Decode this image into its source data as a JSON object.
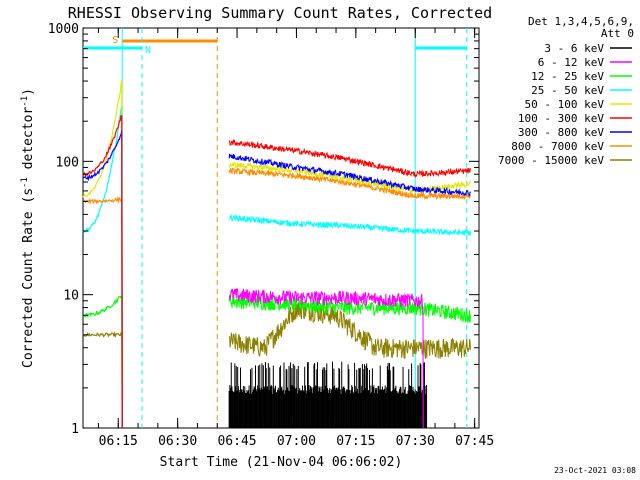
{
  "chart_data": {
    "type": "line",
    "title": "RHESSI Observing Summary Count Rates, Corrected",
    "xlabel": "Start Time (21-Nov-04 06:06:02)",
    "ylabel_main": "Corrected Count Rate (s",
    "ylabel_sup1": "-1",
    "ylabel_mid": " detector",
    "ylabel_sup2": "-1",
    "ylabel_end": ")",
    "y_scale": "log",
    "ylim": [
      1,
      1000
    ],
    "xlim_minutes": [
      6.1,
      106.1
    ],
    "x_ticks": [
      "06:15",
      "06:30",
      "06:45",
      "07:00",
      "07:15",
      "07:30",
      "07:45"
    ],
    "x_tick_minutes": [
      375,
      390,
      405,
      420,
      435,
      450,
      465
    ],
    "y_ticks": [
      "1",
      "10",
      "100",
      "1000"
    ],
    "y_tick_values": [
      1,
      10,
      100,
      1000
    ],
    "legend_header": [
      "Det 1,3,4,5,6,9,",
      "Att 0"
    ],
    "legend_placement": "top-right outside",
    "series": [
      {
        "name": "3 - 6 keV",
        "color": "#000000"
      },
      {
        "name": "6 - 12 keV",
        "color": "#ff00ff"
      },
      {
        "name": "12 - 25 keV",
        "color": "#00ff00"
      },
      {
        "name": "25 - 50 keV",
        "color": "#00ffff"
      },
      {
        "name": "50 - 100 keV",
        "color": "#e6e600"
      },
      {
        "name": "100 - 300 keV",
        "color": "#ff0000"
      },
      {
        "name": "300 - 800 keV",
        "color": "#0000ff"
      },
      {
        "name": "800 - 7000 keV",
        "color": "#ff8c00"
      },
      {
        "name": "7000 - 15000 keV",
        "color": "#8b8000"
      }
    ],
    "flags": [
      {
        "label": "S",
        "color": "#ff8c00",
        "start_time": "06:16",
        "end_time": "06:40"
      },
      {
        "label": "N",
        "color": "#00ffff",
        "start_time": "06:06",
        "end_time": "06:21"
      },
      {
        "label": "",
        "color": "#00ffff",
        "start_time": "07:30",
        "end_time": "07:43"
      }
    ],
    "vertical_lines": [
      {
        "time": "06:16",
        "color": "#00ffff",
        "style": "solid"
      },
      {
        "time": "06:21",
        "color": "#00ffff",
        "style": "dashed"
      },
      {
        "time": "06:40",
        "color": "#ff8c00",
        "style": "dashed"
      },
      {
        "time": "07:30",
        "color": "#00ffff",
        "style": "solid"
      },
      {
        "time": "07:43",
        "color": "#00ffff",
        "style": "dashed"
      }
    ],
    "segments": {
      "pre": {
        "x_range": [
          "06:06",
          "06:16"
        ]
      },
      "post": {
        "x_range": [
          "06:43",
          "07:44"
        ]
      }
    },
    "series_values": {
      "100 - 300 keV": {
        "pre": [
          80,
          230
        ],
        "post": [
          [
            "06:43",
            140
          ],
          [
            "07:00",
            120
          ],
          [
            "07:12",
            105
          ],
          [
            "07:30",
            80
          ],
          [
            "07:44",
            85
          ]
        ]
      },
      "300 - 800 keV": {
        "pre": [
          75,
          170
        ],
        "post": [
          [
            "06:43",
            110
          ],
          [
            "07:00",
            90
          ],
          [
            "07:12",
            80
          ],
          [
            "07:30",
            62
          ],
          [
            "07:44",
            58
          ]
        ]
      },
      "50 - 100 keV": {
        "pre": [
          55,
          420
        ],
        "post": [
          [
            "06:43",
            95
          ],
          [
            "07:00",
            85
          ],
          [
            "07:12",
            75
          ],
          [
            "07:30",
            60
          ],
          [
            "07:44",
            68
          ]
        ]
      },
      "800 - 7000 keV": {
        "pre": [
          50,
          52
        ],
        "post": [
          [
            "06:43",
            85
          ],
          [
            "07:00",
            78
          ],
          [
            "07:12",
            70
          ],
          [
            "07:30",
            55
          ],
          [
            "07:44",
            55
          ]
        ]
      },
      "25 - 50 keV": {
        "pre": [
          30,
          280
        ],
        "post": [
          [
            "06:43",
            38
          ],
          [
            "07:00",
            34
          ],
          [
            "07:12",
            33
          ],
          [
            "07:30",
            30
          ],
          [
            "07:44",
            29
          ]
        ]
      },
      "6 - 12 keV": {
        "post": [
          [
            "06:43",
            10
          ],
          [
            "07:00",
            9.5
          ],
          [
            "07:12",
            9.5
          ],
          [
            "07:32",
            9
          ]
        ]
      },
      "12 - 25 keV": {
        "pre": [
          7,
          10
        ],
        "post": [
          [
            "06:43",
            9
          ],
          [
            "07:00",
            8.5
          ],
          [
            "07:12",
            8
          ],
          [
            "07:30",
            8
          ],
          [
            "07:44",
            7
          ]
        ]
      },
      "7000 - 15000 keV": {
        "pre": [
          5,
          5
        ],
        "post": [
          [
            "06:43",
            4.5
          ],
          [
            "06:52",
            4
          ],
          [
            "07:00",
            8
          ],
          [
            "07:10",
            7
          ],
          [
            "07:20",
            4
          ],
          [
            "07:44",
            4
          ]
        ]
      },
      "3 - 6 keV": {
        "post_range": [
          "06:43",
          "07:33"
        ],
        "level": [
          1,
          3
        ]
      }
    }
  },
  "footer": {
    "timestamp": "23-Oct-2021 03:08"
  }
}
